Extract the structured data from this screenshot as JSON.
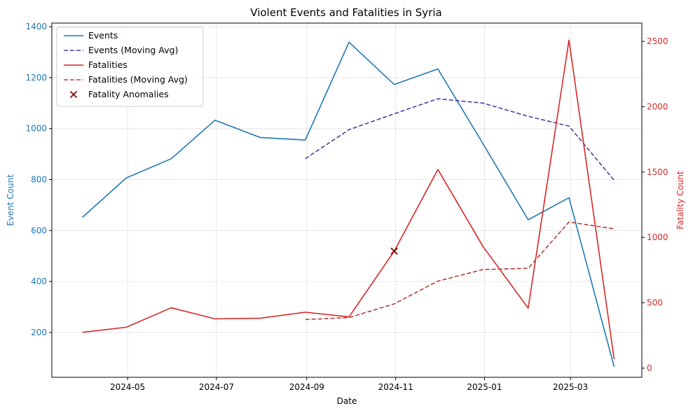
{
  "chart_data": {
    "type": "line",
    "title": "Violent Events and Fatalities in Syria",
    "xlabel": "Date",
    "ylabel_left": "Event Count",
    "ylabel_right": "Fatality Count",
    "x": [
      "2024-03-31",
      "2024-04-30",
      "2024-05-31",
      "2024-06-30",
      "2024-07-31",
      "2024-08-31",
      "2024-09-30",
      "2024-10-31",
      "2024-11-30",
      "2024-12-31",
      "2025-01-31",
      "2025-02-28",
      "2025-03-31"
    ],
    "x_tick_labels": [
      "2024-05",
      "2024-07",
      "2024-09",
      "2024-11",
      "2025-01",
      "2025-03"
    ],
    "x_tick_dates": [
      "2024-05-01",
      "2024-07-01",
      "2024-09-01",
      "2024-11-01",
      "2025-01-01",
      "2025-03-01"
    ],
    "left_ticks": [
      200,
      400,
      600,
      800,
      1000,
      1200,
      1400
    ],
    "right_ticks": [
      0,
      500,
      1000,
      1500,
      2000,
      2500
    ],
    "left_ylim": [
      24,
      1414
    ],
    "right_ylim": [
      -70,
      2640
    ],
    "grid": true,
    "legend_position": "top-left",
    "series": [
      {
        "name": "Events",
        "axis": "left",
        "style": "solid",
        "color": "#1f77b4",
        "values": [
          652,
          806,
          882,
          1033,
          965,
          955,
          1339,
          1173,
          1234,
          940,
          642,
          729,
          65
        ]
      },
      {
        "name": "Events (Moving Avg)",
        "axis": "left",
        "style": "dashed",
        "color": "#4b3fa5",
        "values": [
          null,
          null,
          null,
          null,
          null,
          882,
          996,
          1058,
          1117,
          1100,
          1048,
          1010,
          797
        ]
      },
      {
        "name": "Fatalities",
        "axis": "right",
        "style": "solid",
        "color": "#d62728",
        "values": [
          274,
          313,
          462,
          377,
          382,
          428,
          392,
          895,
          1520,
          930,
          459,
          2510,
          68
        ]
      },
      {
        "name": "Fatalities (Moving Avg)",
        "axis": "right",
        "style": "dashed",
        "color": "#b04040",
        "values": [
          null,
          null,
          null,
          null,
          null,
          372,
          387,
          492,
          666,
          755,
          764,
          1118,
          1066
        ]
      }
    ],
    "anomalies": {
      "name": "Fatality Anomalies",
      "axis": "right",
      "color": "#8b0000",
      "marker": "x",
      "points": [
        {
          "x": "2024-10-31",
          "y": 895
        }
      ]
    }
  },
  "colors": {
    "left_axis": "#1f77b4",
    "right_axis": "#d62728",
    "grid": "#e6e6e6",
    "axes": "#000000"
  }
}
